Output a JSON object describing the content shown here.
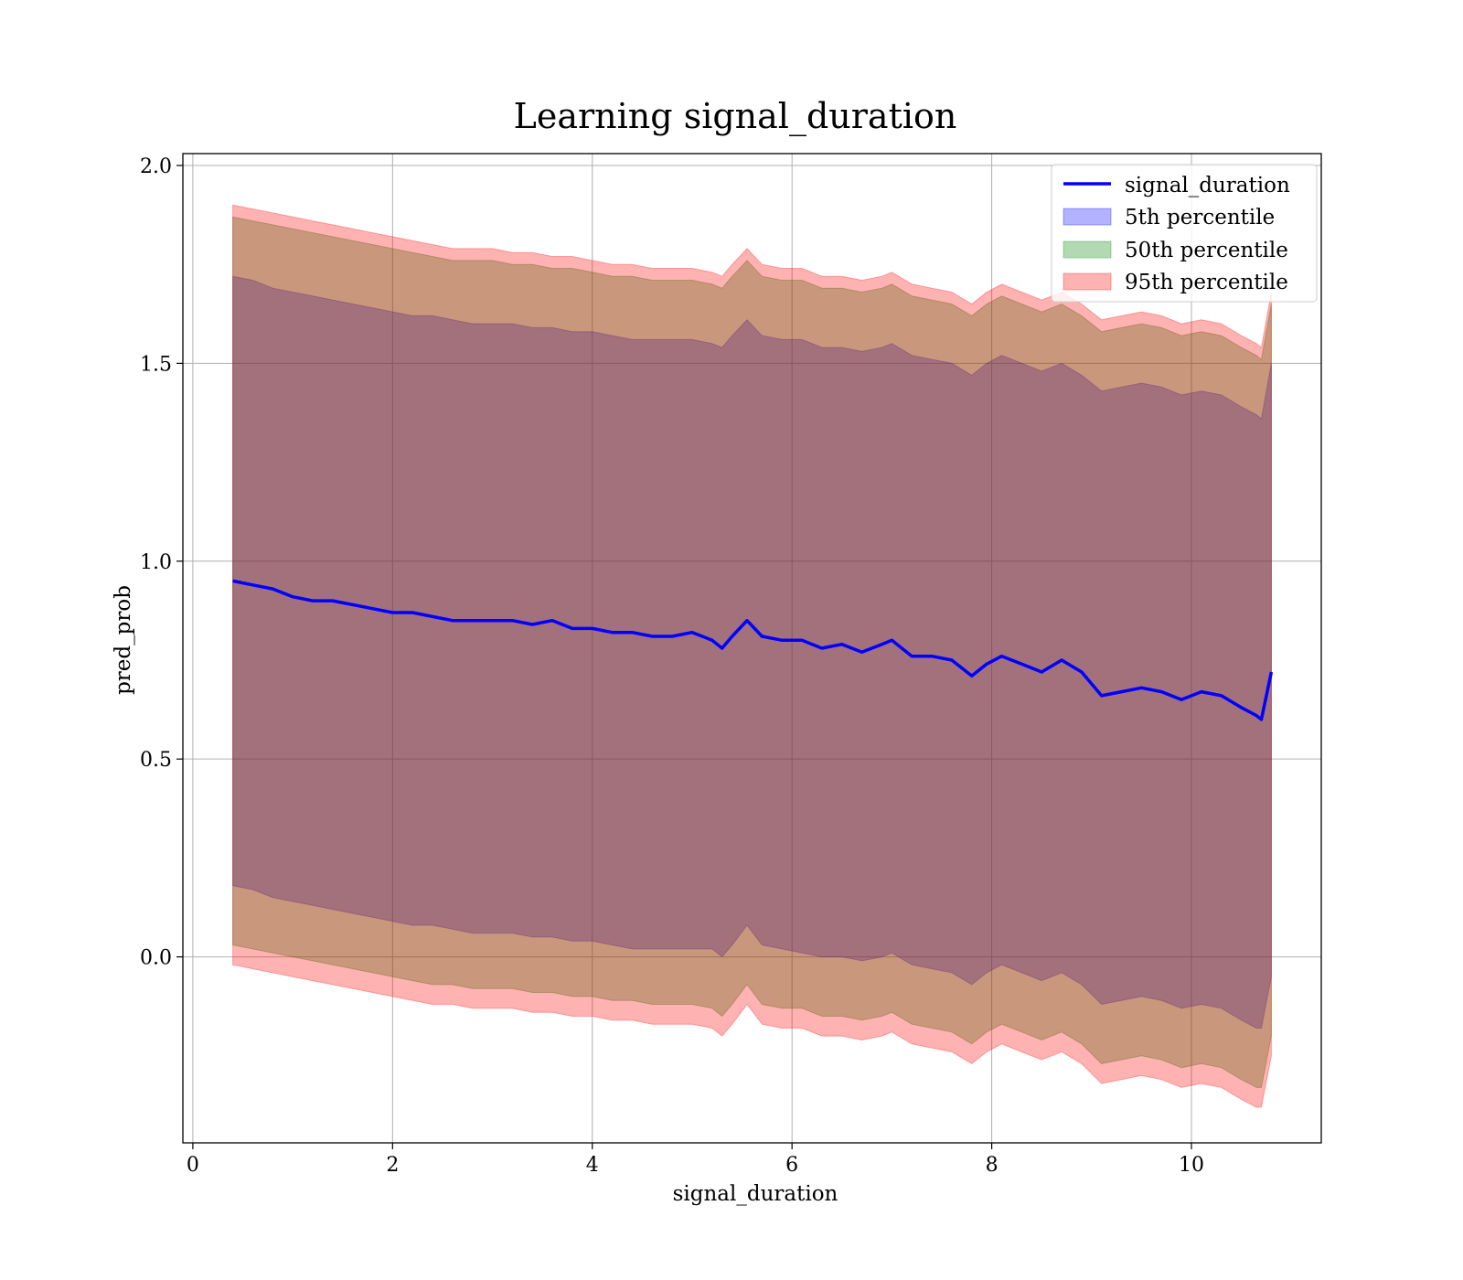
{
  "chart_data": {
    "type": "area",
    "title": "Learning signal_duration",
    "xlabel": "signal_duration",
    "ylabel": "pred_prob",
    "xlim": [
      -0.1,
      11.3
    ],
    "ylim": [
      -0.47,
      2.03
    ],
    "xticks": [
      0,
      2,
      4,
      6,
      8,
      10
    ],
    "xtick_labels": [
      "0",
      "2",
      "4",
      "6",
      "8",
      "10"
    ],
    "yticks": [
      0.0,
      0.5,
      1.0,
      1.5,
      2.0
    ],
    "ytick_labels": [
      "0.0",
      "0.5",
      "1.0",
      "1.5",
      "2.0"
    ],
    "grid": true,
    "legend_position": "top-right",
    "x": [
      0.4,
      0.6,
      0.8,
      1.0,
      1.2,
      1.4,
      1.6,
      1.8,
      2.0,
      2.2,
      2.4,
      2.6,
      2.8,
      3.0,
      3.2,
      3.4,
      3.6,
      3.8,
      4.0,
      4.2,
      4.4,
      4.6,
      4.8,
      5.0,
      5.2,
      5.3,
      5.4,
      5.55,
      5.7,
      5.9,
      6.1,
      6.3,
      6.5,
      6.7,
      6.9,
      7.0,
      7.2,
      7.4,
      7.6,
      7.8,
      7.95,
      8.1,
      8.3,
      8.5,
      8.7,
      8.9,
      9.1,
      9.3,
      9.5,
      9.7,
      9.9,
      10.1,
      10.3,
      10.5,
      10.65,
      10.7,
      10.8
    ],
    "series": [
      {
        "name": "signal_duration",
        "values": [
          0.95,
          0.94,
          0.93,
          0.91,
          0.9,
          0.9,
          0.89,
          0.88,
          0.87,
          0.87,
          0.86,
          0.85,
          0.85,
          0.85,
          0.85,
          0.84,
          0.85,
          0.83,
          0.83,
          0.82,
          0.82,
          0.81,
          0.81,
          0.82,
          0.8,
          0.78,
          0.81,
          0.85,
          0.81,
          0.8,
          0.8,
          0.78,
          0.79,
          0.77,
          0.79,
          0.8,
          0.76,
          0.76,
          0.75,
          0.71,
          0.74,
          0.76,
          0.74,
          0.72,
          0.75,
          0.72,
          0.66,
          0.67,
          0.68,
          0.67,
          0.65,
          0.67,
          0.66,
          0.63,
          0.61,
          0.6,
          0.72
        ]
      }
    ],
    "bands": [
      {
        "name": "5th percentile",
        "color": "#0000ff",
        "upper": [
          1.72,
          1.71,
          1.69,
          1.68,
          1.67,
          1.66,
          1.65,
          1.64,
          1.63,
          1.62,
          1.62,
          1.61,
          1.6,
          1.6,
          1.6,
          1.59,
          1.59,
          1.58,
          1.58,
          1.57,
          1.56,
          1.56,
          1.56,
          1.56,
          1.55,
          1.54,
          1.57,
          1.61,
          1.57,
          1.56,
          1.56,
          1.54,
          1.54,
          1.53,
          1.54,
          1.55,
          1.52,
          1.51,
          1.5,
          1.47,
          1.5,
          1.52,
          1.5,
          1.48,
          1.5,
          1.47,
          1.43,
          1.44,
          1.45,
          1.44,
          1.42,
          1.43,
          1.42,
          1.39,
          1.37,
          1.36,
          1.5
        ],
        "lower": [
          0.18,
          0.17,
          0.15,
          0.14,
          0.13,
          0.12,
          0.11,
          0.1,
          0.09,
          0.08,
          0.08,
          0.07,
          0.06,
          0.06,
          0.06,
          0.05,
          0.05,
          0.04,
          0.04,
          0.03,
          0.02,
          0.02,
          0.02,
          0.02,
          0.02,
          0.0,
          0.03,
          0.08,
          0.03,
          0.02,
          0.01,
          0.0,
          0.0,
          -0.01,
          0.0,
          0.01,
          -0.02,
          -0.03,
          -0.04,
          -0.07,
          -0.04,
          -0.02,
          -0.04,
          -0.06,
          -0.04,
          -0.07,
          -0.12,
          -0.11,
          -0.1,
          -0.11,
          -0.13,
          -0.12,
          -0.13,
          -0.16,
          -0.18,
          -0.18,
          -0.05
        ]
      },
      {
        "name": "50th percentile",
        "color": "#008000",
        "upper": [
          1.87,
          1.86,
          1.85,
          1.84,
          1.83,
          1.82,
          1.81,
          1.8,
          1.79,
          1.78,
          1.77,
          1.76,
          1.76,
          1.76,
          1.75,
          1.75,
          1.74,
          1.74,
          1.73,
          1.72,
          1.72,
          1.71,
          1.71,
          1.71,
          1.7,
          1.69,
          1.72,
          1.76,
          1.72,
          1.71,
          1.71,
          1.69,
          1.69,
          1.68,
          1.69,
          1.7,
          1.67,
          1.66,
          1.65,
          1.62,
          1.65,
          1.67,
          1.65,
          1.63,
          1.65,
          1.62,
          1.58,
          1.59,
          1.6,
          1.59,
          1.57,
          1.58,
          1.57,
          1.54,
          1.52,
          1.51,
          1.65
        ],
        "lower": [
          0.03,
          0.02,
          0.01,
          0.0,
          -0.01,
          -0.02,
          -0.03,
          -0.04,
          -0.05,
          -0.06,
          -0.07,
          -0.07,
          -0.08,
          -0.08,
          -0.08,
          -0.09,
          -0.09,
          -0.1,
          -0.1,
          -0.11,
          -0.11,
          -0.12,
          -0.12,
          -0.12,
          -0.13,
          -0.15,
          -0.12,
          -0.07,
          -0.12,
          -0.13,
          -0.13,
          -0.15,
          -0.15,
          -0.16,
          -0.15,
          -0.14,
          -0.17,
          -0.18,
          -0.19,
          -0.22,
          -0.19,
          -0.17,
          -0.19,
          -0.21,
          -0.19,
          -0.22,
          -0.27,
          -0.26,
          -0.25,
          -0.26,
          -0.28,
          -0.27,
          -0.28,
          -0.31,
          -0.33,
          -0.33,
          -0.2
        ]
      },
      {
        "name": "95th percentile",
        "color": "#ff0000",
        "upper": [
          1.9,
          1.89,
          1.88,
          1.87,
          1.86,
          1.85,
          1.84,
          1.83,
          1.82,
          1.81,
          1.8,
          1.79,
          1.79,
          1.79,
          1.78,
          1.78,
          1.77,
          1.77,
          1.76,
          1.75,
          1.75,
          1.74,
          1.74,
          1.74,
          1.73,
          1.72,
          1.75,
          1.79,
          1.75,
          1.74,
          1.74,
          1.72,
          1.72,
          1.71,
          1.72,
          1.73,
          1.7,
          1.69,
          1.68,
          1.65,
          1.68,
          1.7,
          1.68,
          1.66,
          1.68,
          1.65,
          1.61,
          1.62,
          1.63,
          1.62,
          1.6,
          1.61,
          1.6,
          1.57,
          1.55,
          1.54,
          1.68
        ],
        "lower": [
          -0.02,
          -0.03,
          -0.04,
          -0.05,
          -0.06,
          -0.07,
          -0.08,
          -0.09,
          -0.1,
          -0.11,
          -0.12,
          -0.12,
          -0.13,
          -0.13,
          -0.13,
          -0.14,
          -0.14,
          -0.15,
          -0.15,
          -0.16,
          -0.16,
          -0.17,
          -0.17,
          -0.17,
          -0.18,
          -0.2,
          -0.17,
          -0.12,
          -0.17,
          -0.18,
          -0.18,
          -0.2,
          -0.2,
          -0.21,
          -0.2,
          -0.19,
          -0.22,
          -0.23,
          -0.24,
          -0.27,
          -0.24,
          -0.22,
          -0.24,
          -0.26,
          -0.24,
          -0.27,
          -0.32,
          -0.31,
          -0.3,
          -0.31,
          -0.33,
          -0.32,
          -0.33,
          -0.36,
          -0.38,
          -0.38,
          -0.25
        ]
      }
    ],
    "legend": [
      "signal_duration",
      "5th percentile",
      "50th percentile",
      "95th percentile"
    ],
    "line_color": "#0000ff"
  }
}
